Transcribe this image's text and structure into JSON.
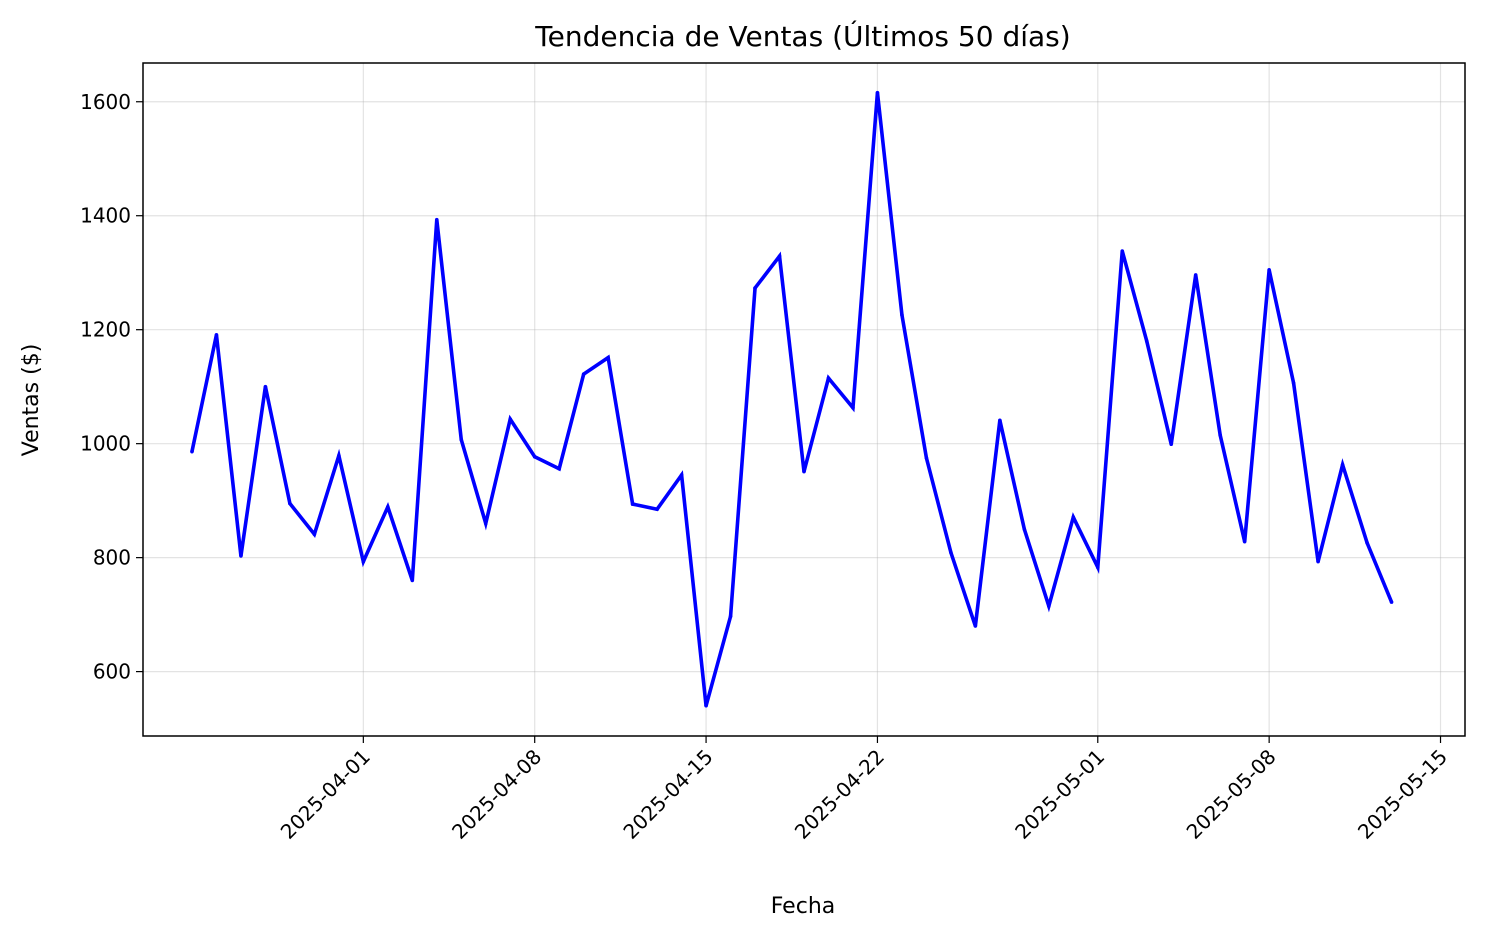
{
  "chart_data": {
    "type": "line",
    "title": "Tendencia de Ventas (Últimos 50 días)",
    "xlabel": "Fecha",
    "ylabel": "Ventas ($)",
    "x_tick_labels": [
      "2025-04-01",
      "2025-04-08",
      "2025-04-15",
      "2025-04-22",
      "2025-05-01",
      "2025-05-08",
      "2025-05-15"
    ],
    "y_tick_labels": [
      "600",
      "800",
      "1000",
      "1200",
      "1400",
      "1600"
    ],
    "ylim": [
      487,
      1668
    ],
    "xlim": [
      "2025-03-23",
      "2025-05-16"
    ],
    "grid": true,
    "line_color": "#0000ff",
    "series": [
      {
        "x": [
          "2025-03-25",
          "2025-03-26",
          "2025-03-27",
          "2025-03-28",
          "2025-03-29",
          "2025-03-30",
          "2025-03-31",
          "2025-04-01",
          "2025-04-02",
          "2025-04-03",
          "2025-04-04",
          "2025-04-05",
          "2025-04-06",
          "2025-04-07",
          "2025-04-08",
          "2025-04-09",
          "2025-04-10",
          "2025-04-11",
          "2025-04-12",
          "2025-04-13",
          "2025-04-14",
          "2025-04-15",
          "2025-04-16",
          "2025-04-17",
          "2025-04-18",
          "2025-04-19",
          "2025-04-20",
          "2025-04-21",
          "2025-04-22",
          "2025-04-23",
          "2025-04-24",
          "2025-04-25",
          "2025-04-26",
          "2025-04-27",
          "2025-04-28",
          "2025-04-29",
          "2025-04-30",
          "2025-05-01",
          "2025-05-02",
          "2025-05-03",
          "2025-05-04",
          "2025-05-05",
          "2025-05-06",
          "2025-05-07",
          "2025-05-08",
          "2025-05-09",
          "2025-05-10",
          "2025-05-11",
          "2025-05-12",
          "2025-05-13"
        ],
        "values": [
          986,
          1191,
          803,
          1100,
          895,
          841,
          979,
          793,
          889,
          760,
          1393,
          1007,
          860,
          1043,
          977,
          956,
          1122,
          1151,
          894,
          885,
          945,
          540,
          697,
          1273,
          1329,
          951,
          1115,
          1063,
          1616,
          1226,
          975,
          809,
          680,
          1041,
          850,
          715,
          871,
          783,
          1338,
          1180,
          999,
          1296,
          1015,
          828,
          1305,
          1106,
          793,
          963,
          826,
          722
        ]
      }
    ]
  }
}
